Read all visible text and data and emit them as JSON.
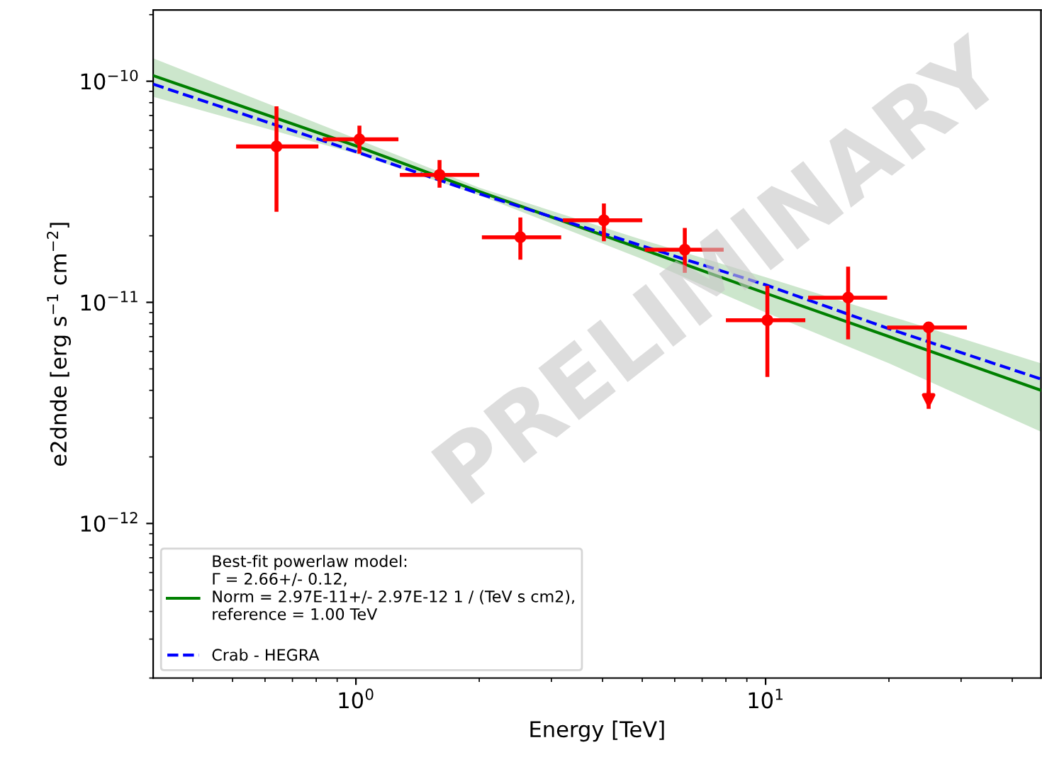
{
  "chart_data": {
    "type": "scatter",
    "xlabel": "Energy [TeV]",
    "ylabel": "e2dnde [erg s$^{−1}$ cm$^{−2}$]",
    "log": "xy",
    "xlim": [
      0.32,
      47
    ],
    "ylim": [
      2e-13,
      2.1e-10
    ],
    "xticks": [
      {
        "value": 1,
        "label": "10$^{0}$"
      },
      {
        "value": 10,
        "label": "10$^{1}$"
      }
    ],
    "yticks": [
      {
        "value": 1e-12,
        "label": "10$^{−12}$"
      },
      {
        "value": 1e-11,
        "label": "10$^{−11}$"
      },
      {
        "value": 1e-10,
        "label": "10$^{−10}$"
      }
    ],
    "grid": false,
    "legend": "bottom left",
    "annotations": [
      "PRELIMINARY"
    ],
    "series": [
      {
        "type": "line",
        "name": "Best-fit powerlaw model:\nΓ = 2.66+/- 0.12,\nNorm = 2.97E-11+/- 2.97E-12 1 / (TeV s cm2),\nreference = 1.00 TeV\n",
        "color": "#008000",
        "x": [
          0.32,
          1,
          2,
          5,
          10,
          20,
          47
        ],
        "values": [
          1.06e-10,
          5.1e-11,
          3.17e-11,
          1.74e-11,
          1.1e-11,
          7e-12,
          4e-12
        ],
        "lower": [
          8.5e-11,
          4.7e-11,
          3.05e-11,
          1.57e-11,
          9e-12,
          5.3e-12,
          2.6e-12
        ],
        "upper": [
          1.27e-10,
          5.5e-11,
          3.3e-11,
          1.92e-11,
          1.3e-11,
          8.7e-12,
          5.3e-12
        ]
      },
      {
        "type": "line",
        "name": "Crab - HEGRA",
        "color": "#0000ff",
        "line_style": "dashed",
        "x": [
          0.32,
          1,
          2,
          5,
          10,
          20,
          47
        ],
        "values": [
          9.7e-11,
          4.8e-11,
          3.1e-11,
          1.8e-11,
          1.2e-11,
          7.6e-12,
          4.5e-12
        ]
      },
      {
        "color": "#ff0000",
        "marker": "circle",
        "x": [
          0.64,
          1.02,
          1.6,
          2.52,
          4.03,
          6.35,
          10.1,
          15.9,
          25
        ],
        "values": [
          5.07e-11,
          5.46e-11,
          3.77e-11,
          1.97e-11,
          2.35e-11,
          1.73e-11,
          8.3e-12,
          1.05e-11,
          7.7e-12
        ],
        "errors": [
          [
            2.57e-11,
            7.7e-11
          ],
          [
            4.7e-11,
            6.3e-11
          ],
          [
            3.3e-11,
            4.4e-11
          ],
          [
            1.56e-11,
            2.42e-11
          ],
          [
            1.89e-11,
            2.8e-11
          ],
          [
            1.36e-11,
            2.17e-11
          ],
          [
            4.6e-12,
            1.19e-11
          ],
          [
            6.8e-12,
            1.45e-11
          ],
          [
            3.3e-12,
            7.7e-12
          ]
        ],
        "xerrors": [
          [
            0.51,
            0.81
          ],
          [
            0.83,
            1.27
          ],
          [
            1.28,
            2.0
          ],
          [
            2.03,
            3.17
          ],
          [
            3.2,
            5.0
          ],
          [
            5.07,
            7.9
          ],
          [
            8.0,
            12.5
          ],
          [
            12.7,
            19.8
          ],
          [
            19.8,
            31
          ]
        ]
      }
    ]
  }
}
